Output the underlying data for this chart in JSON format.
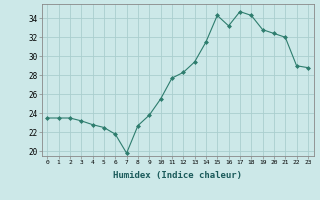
{
  "x": [
    0,
    1,
    2,
    3,
    4,
    5,
    6,
    7,
    8,
    9,
    10,
    11,
    12,
    13,
    14,
    15,
    16,
    17,
    18,
    19,
    20,
    21,
    22,
    23
  ],
  "y": [
    23.5,
    23.5,
    23.5,
    23.2,
    22.8,
    22.5,
    21.8,
    19.8,
    22.7,
    23.8,
    25.5,
    27.7,
    28.3,
    29.4,
    31.5,
    34.3,
    33.2,
    34.7,
    34.3,
    32.8,
    32.4,
    32.0,
    29.0,
    28.8
  ],
  "line_color": "#2e7d6e",
  "marker": "D",
  "marker_size": 2.0,
  "bg_color": "#cce8e8",
  "grid_color": "#aacece",
  "xlabel": "Humidex (Indice chaleur)",
  "xlim": [
    -0.5,
    23.5
  ],
  "ylim": [
    19.5,
    35.5
  ],
  "yticks": [
    20,
    22,
    24,
    26,
    28,
    30,
    32,
    34
  ],
  "xticks": [
    0,
    1,
    2,
    3,
    4,
    5,
    6,
    7,
    8,
    9,
    10,
    11,
    12,
    13,
    14,
    15,
    16,
    17,
    18,
    19,
    20,
    21,
    22,
    23
  ]
}
